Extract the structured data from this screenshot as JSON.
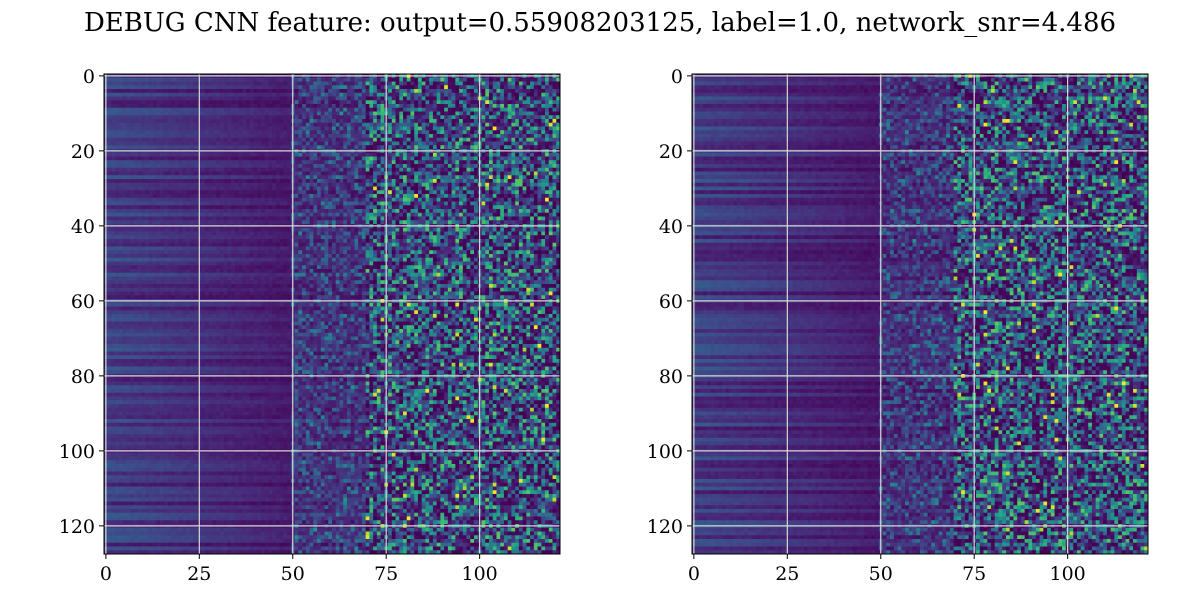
{
  "figure": {
    "title": "DEBUG CNN feature: output=0.55908203125, label=1.0, network_snr=4.486"
  },
  "chart_data": [
    {
      "type": "heatmap",
      "colormap": "viridis",
      "grid": true,
      "x_range": [
        -0.5,
        121.5
      ],
      "y_range": [
        127.5,
        -0.5
      ],
      "x_ticks": [
        0,
        25,
        50,
        75,
        100
      ],
      "y_ticks": [
        0,
        20,
        40,
        60,
        80,
        100,
        120
      ],
      "n_cols": 122,
      "n_rows": 128,
      "seed": 7
    },
    {
      "type": "heatmap",
      "colormap": "viridis",
      "grid": true,
      "x_range": [
        -0.5,
        121.5
      ],
      "y_range": [
        127.5,
        -0.5
      ],
      "x_ticks": [
        0,
        25,
        50,
        75,
        100
      ],
      "y_ticks": [
        0,
        20,
        40,
        60,
        80,
        100,
        120
      ],
      "n_cols": 122,
      "n_rows": 128,
      "seed": 13
    }
  ]
}
